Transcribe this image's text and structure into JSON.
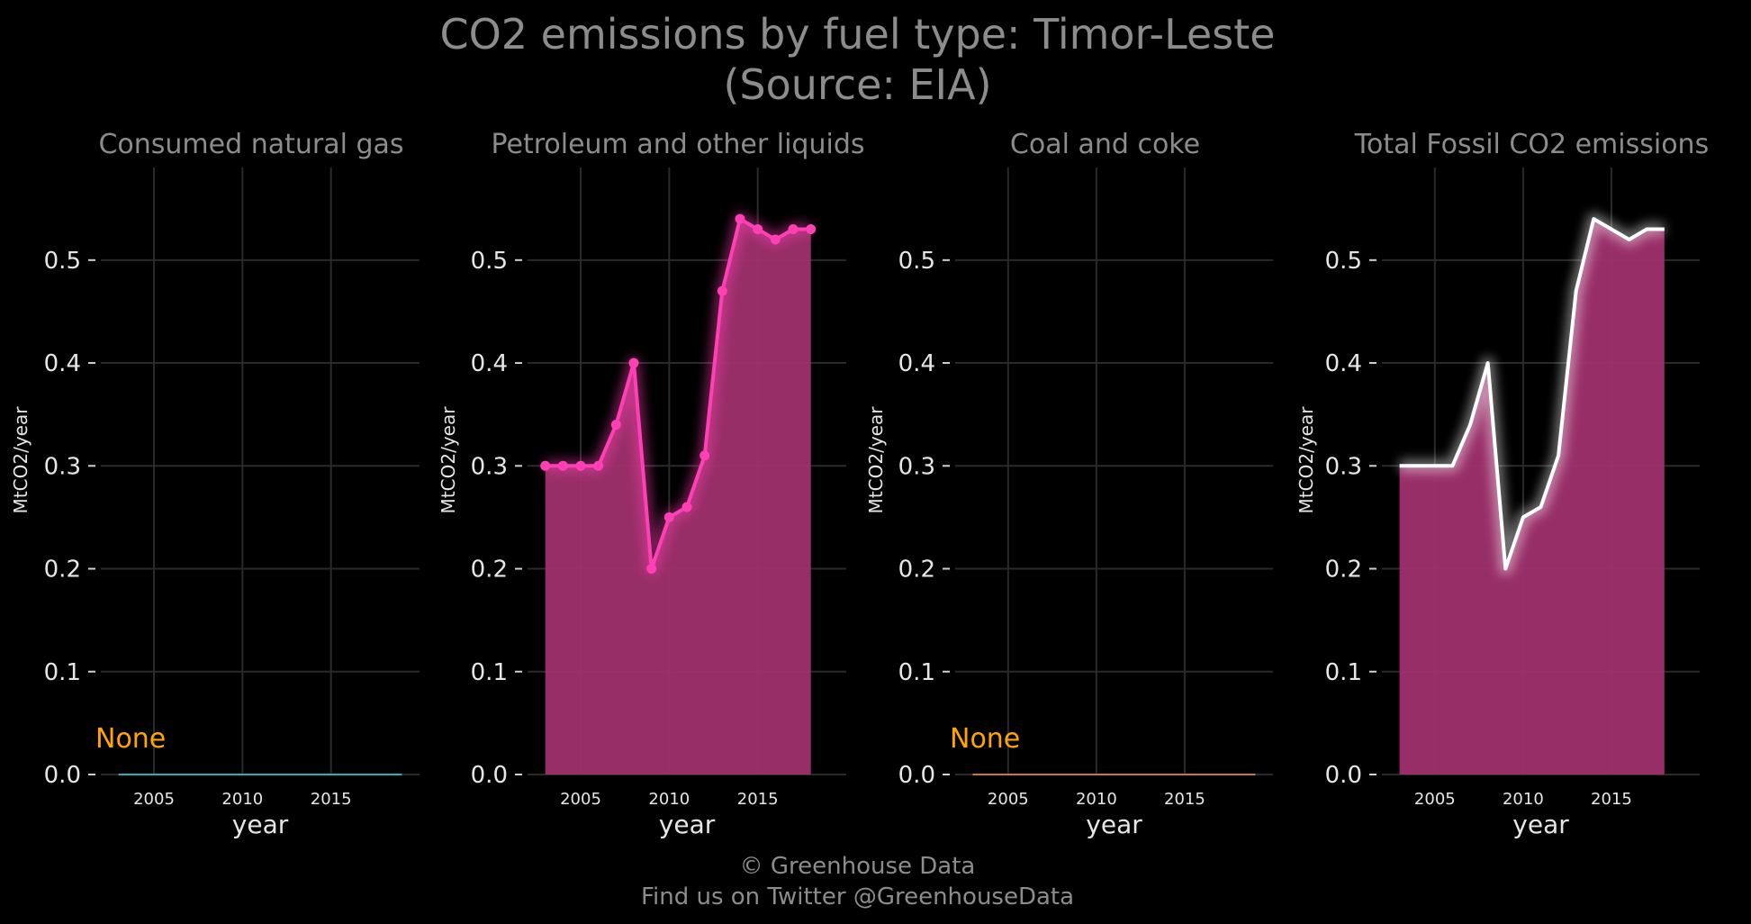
{
  "title": "CO2 emissions by fuel type: Timor-Leste",
  "subtitle": "(Source: EIA)",
  "footer": {
    "line1": "© Greenhouse Data",
    "line2": "Find us on Twitter @GreenhouseData"
  },
  "colors": {
    "background": "#000000",
    "grid": "#2a2a2a",
    "text": "#e6e6e6",
    "title": "#8c8c8c",
    "gas": "#1fb5b5",
    "petroleum": "#ff3fb4",
    "coal": "#c87a30",
    "total_line": "#ffffff",
    "fill": "#a0306e",
    "none_label": "#ffa500"
  },
  "chart_data": [
    {
      "type": "line",
      "title": "Consumed natural gas",
      "xlabel": "year",
      "ylabel": "MtCO2/year",
      "xlim": [
        2002,
        2020
      ],
      "ylim": [
        0,
        0.59
      ],
      "xticks": [
        2005,
        2010,
        2015
      ],
      "yticks": [
        0.0,
        0.1,
        0.2,
        0.3,
        0.4,
        0.5
      ],
      "grid": true,
      "annotation": "None",
      "series": [
        {
          "x": [
            2003,
            2004,
            2005,
            2006,
            2007,
            2008,
            2009,
            2010,
            2011,
            2012,
            2013,
            2014,
            2015,
            2016,
            2017,
            2018,
            2019
          ],
          "y": [
            0,
            0,
            0,
            0,
            0,
            0,
            0,
            0,
            0,
            0,
            0,
            0,
            0,
            0,
            0,
            0,
            0
          ],
          "color": "#1fb5b5",
          "markers": false,
          "fill": false
        }
      ]
    },
    {
      "type": "area",
      "title": "Petroleum and other liquids",
      "xlabel": "year",
      "ylabel": "MtCO2/year",
      "xlim": [
        2002,
        2020
      ],
      "ylim": [
        0,
        0.59
      ],
      "xticks": [
        2005,
        2010,
        2015
      ],
      "yticks": [
        0.0,
        0.1,
        0.2,
        0.3,
        0.4,
        0.5
      ],
      "grid": true,
      "series": [
        {
          "x": [
            2003,
            2004,
            2005,
            2006,
            2007,
            2008,
            2009,
            2010,
            2011,
            2012,
            2013,
            2014,
            2015,
            2016,
            2017,
            2018
          ],
          "y": [
            0.3,
            0.3,
            0.3,
            0.3,
            0.34,
            0.4,
            0.2,
            0.25,
            0.26,
            0.31,
            0.47,
            0.54,
            0.53,
            0.52,
            0.53,
            0.53
          ],
          "color": "#ff3fb4",
          "markers": true,
          "fill": true
        }
      ]
    },
    {
      "type": "line",
      "title": "Coal and coke",
      "xlabel": "year",
      "ylabel": "MtCO2/year",
      "xlim": [
        2002,
        2020
      ],
      "ylim": [
        0,
        0.59
      ],
      "xticks": [
        2005,
        2010,
        2015
      ],
      "yticks": [
        0.0,
        0.1,
        0.2,
        0.3,
        0.4,
        0.5
      ],
      "grid": true,
      "annotation": "None",
      "series": [
        {
          "x": [
            2003,
            2004,
            2005,
            2006,
            2007,
            2008,
            2009,
            2010,
            2011,
            2012,
            2013,
            2014,
            2015,
            2016,
            2017,
            2018,
            2019
          ],
          "y": [
            0,
            0,
            0,
            0,
            0,
            0,
            0,
            0,
            0,
            0,
            0,
            0,
            0,
            0,
            0,
            0,
            0
          ],
          "color": "#c87a30",
          "markers": false,
          "fill": false
        }
      ]
    },
    {
      "type": "area",
      "title": "Total Fossil CO2 emissions",
      "xlabel": "year",
      "ylabel": "MtCO2/year",
      "xlim": [
        2002,
        2020
      ],
      "ylim": [
        0,
        0.59
      ],
      "xticks": [
        2005,
        2010,
        2015
      ],
      "yticks": [
        0.0,
        0.1,
        0.2,
        0.3,
        0.4,
        0.5
      ],
      "grid": true,
      "series": [
        {
          "x": [
            2003,
            2004,
            2005,
            2006,
            2007,
            2008,
            2009,
            2010,
            2011,
            2012,
            2013,
            2014,
            2015,
            2016,
            2017,
            2018
          ],
          "y": [
            0.3,
            0.3,
            0.3,
            0.3,
            0.34,
            0.4,
            0.2,
            0.25,
            0.26,
            0.31,
            0.47,
            0.54,
            0.53,
            0.52,
            0.53,
            0.53
          ],
          "color": "#ffffff",
          "markers": false,
          "fill": true
        }
      ]
    }
  ]
}
